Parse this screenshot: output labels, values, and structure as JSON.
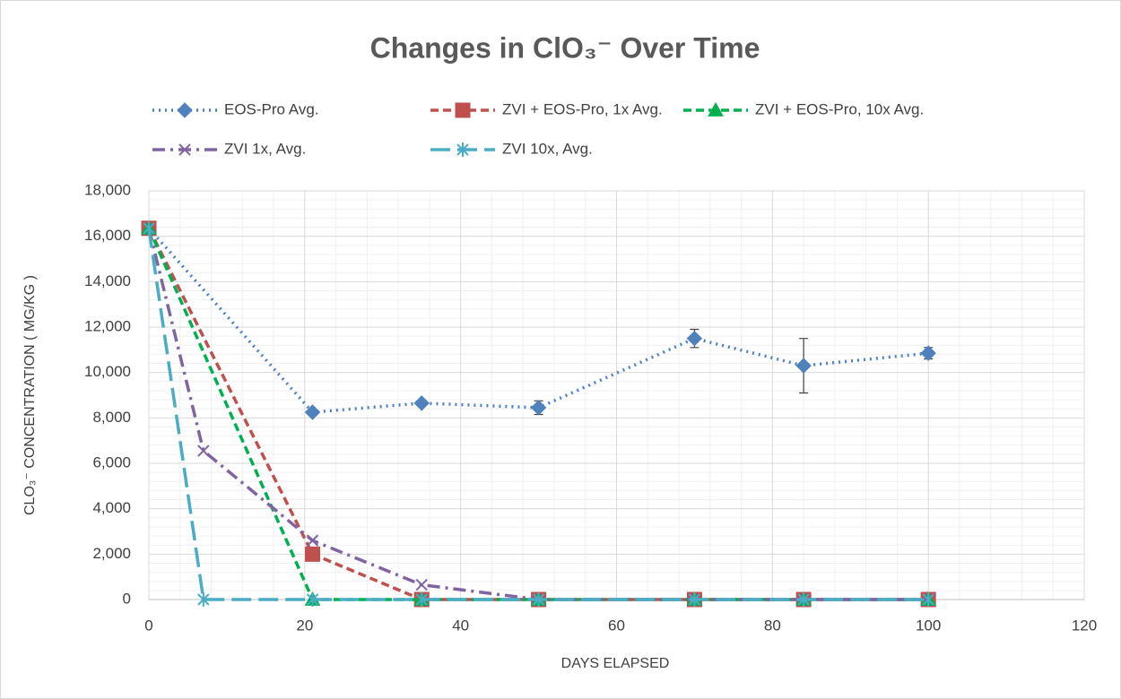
{
  "chart_data": {
    "type": "line",
    "title": "Changes in ClO₃⁻ Over Time",
    "x_label": "DAYS ELAPSED",
    "y_label": "CLO₃⁻ CONCENTRATION ( MG/KG )",
    "xlim": [
      0,
      120
    ],
    "xticks": [
      0,
      20,
      40,
      60,
      80,
      100,
      120
    ],
    "ylim": [
      0,
      18000
    ],
    "yticks": [
      0,
      {
        "value": 2000,
        "label": "2,000"
      },
      {
        "value": 4000,
        "label": "4,000"
      },
      {
        "value": 6000,
        "label": "6,000"
      },
      {
        "value": 8000,
        "label": "8,000"
      },
      {
        "value": 10000,
        "label": "10,000"
      },
      {
        "value": 12000,
        "label": "12,000"
      },
      {
        "value": 14000,
        "label": "14,000"
      },
      {
        "value": 16000,
        "label": "16,000"
      },
      {
        "value": 18000,
        "label": "18,000"
      }
    ],
    "grid": true,
    "minor_grid": true,
    "legend": "top",
    "series": [
      {
        "name": "EOS-Pro Avg.",
        "color": "#4f81bd",
        "line_style": "dotted",
        "marker": "diamond",
        "x": [
          0,
          21,
          35,
          50,
          70,
          84,
          100
        ],
        "values": [
          16350,
          8250,
          8650,
          8450,
          11500,
          10300,
          10850
        ],
        "error": [
          0,
          100,
          100,
          300,
          400,
          1200,
          250
        ]
      },
      {
        "name": "ZVI + EOS-Pro, 1x Avg.",
        "color": "#c0504d",
        "line_style": "dashed",
        "marker": "square",
        "x": [
          0,
          21,
          35,
          50,
          70,
          84,
          100
        ],
        "values": [
          16350,
          2000,
          0,
          0,
          0,
          0,
          0
        ]
      },
      {
        "name": "ZVI + EOS-Pro, 10x Avg.",
        "color": "#00b050",
        "line_style": "dashed",
        "marker": "triangle",
        "x": [
          0,
          21,
          35,
          50,
          70,
          84,
          100
        ],
        "values": [
          16350,
          0,
          0,
          0,
          0,
          0,
          0
        ]
      },
      {
        "name": "ZVI 1x, Avg.",
        "color": "#8064a2",
        "line_style": "dashdot",
        "marker": "x",
        "x": [
          0,
          7,
          21,
          35,
          50,
          70,
          84,
          100
        ],
        "values": [
          16350,
          6550,
          2600,
          650,
          0,
          0,
          0,
          0
        ]
      },
      {
        "name": "ZVI 10x, Avg.",
        "color": "#4bacc6",
        "line_style": "longdash",
        "marker": "star",
        "x": [
          0,
          7,
          21,
          35,
          50,
          70,
          84,
          100
        ],
        "values": [
          16350,
          0,
          0,
          0,
          0,
          0,
          0,
          0
        ]
      }
    ]
  }
}
